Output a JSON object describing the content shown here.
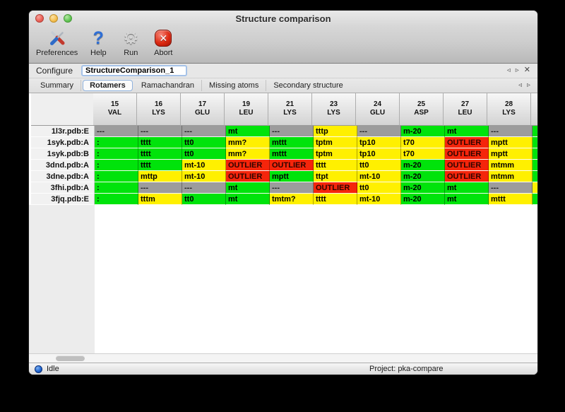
{
  "window": {
    "title": "Structure comparison"
  },
  "toolbar": {
    "items": [
      {
        "label": "Preferences"
      },
      {
        "label": "Help"
      },
      {
        "label": "Run"
      },
      {
        "label": "Abort"
      }
    ]
  },
  "icons": {
    "help_glyph": "?",
    "gear_glyph": "⚙",
    "abort_glyph": "✕",
    "prev_arrow": "◃",
    "next_arrow": "▹",
    "close_glyph": "✕"
  },
  "configure": {
    "label": "Configure",
    "value": "StructureComparison_1"
  },
  "tab_bar": {
    "tabs": [
      "Summary",
      "Rotamers",
      "Ramachandran",
      "Missing atoms",
      "Secondary structure"
    ],
    "active": "Rotamers"
  },
  "table": {
    "columns": [
      {
        "num": "15",
        "res": "VAL"
      },
      {
        "num": "16",
        "res": "LYS"
      },
      {
        "num": "17",
        "res": "GLU"
      },
      {
        "num": "19",
        "res": "LEU"
      },
      {
        "num": "21",
        "res": "LYS"
      },
      {
        "num": "23",
        "res": "LYS"
      },
      {
        "num": "24",
        "res": "GLU"
      },
      {
        "num": "25",
        "res": "ASP"
      },
      {
        "num": "27",
        "res": "LEU"
      },
      {
        "num": "28",
        "res": "LYS"
      }
    ],
    "rows": [
      {
        "label": "1l3r.pdb:E",
        "overflow_color": "green",
        "cells": [
          {
            "text": "---",
            "color": "gray"
          },
          {
            "text": "---",
            "color": "gray"
          },
          {
            "text": "---",
            "color": "gray"
          },
          {
            "text": "mt",
            "color": "green"
          },
          {
            "text": "---",
            "color": "gray"
          },
          {
            "text": "tttp",
            "color": "yellow"
          },
          {
            "text": "---",
            "color": "gray"
          },
          {
            "text": "m-20",
            "color": "green"
          },
          {
            "text": "mt",
            "color": "green"
          },
          {
            "text": "---",
            "color": "gray"
          }
        ]
      },
      {
        "label": "1syk.pdb:A",
        "overflow_color": "green",
        "cells": [
          {
            "text": ":",
            "color": "green"
          },
          {
            "text": "tttt",
            "color": "green"
          },
          {
            "text": "tt0",
            "color": "green"
          },
          {
            "text": "mm?",
            "color": "yellow"
          },
          {
            "text": "mttt",
            "color": "green"
          },
          {
            "text": "tptm",
            "color": "yellow"
          },
          {
            "text": "tp10",
            "color": "yellow"
          },
          {
            "text": "t70",
            "color": "yellow"
          },
          {
            "text": "OUTLIER",
            "color": "red"
          },
          {
            "text": "mptt",
            "color": "yellow"
          }
        ]
      },
      {
        "label": "1syk.pdb:B",
        "overflow_color": "green",
        "cells": [
          {
            "text": ":",
            "color": "green"
          },
          {
            "text": "tttt",
            "color": "green"
          },
          {
            "text": "tt0",
            "color": "green"
          },
          {
            "text": "mm?",
            "color": "yellow"
          },
          {
            "text": "mttt",
            "color": "green"
          },
          {
            "text": "tptm",
            "color": "yellow"
          },
          {
            "text": "tp10",
            "color": "yellow"
          },
          {
            "text": "t70",
            "color": "yellow"
          },
          {
            "text": "OUTLIER",
            "color": "red"
          },
          {
            "text": "mptt",
            "color": "yellow"
          }
        ]
      },
      {
        "label": "3dnd.pdb:A",
        "overflow_color": "green",
        "cells": [
          {
            "text": ":",
            "color": "green"
          },
          {
            "text": "tttt",
            "color": "green"
          },
          {
            "text": "mt-10",
            "color": "yellow"
          },
          {
            "text": "OUTLIER",
            "color": "red"
          },
          {
            "text": "OUTLIER",
            "color": "red"
          },
          {
            "text": "tttt",
            "color": "yellow"
          },
          {
            "text": "tt0",
            "color": "yellow"
          },
          {
            "text": "m-20",
            "color": "green"
          },
          {
            "text": "OUTLIER",
            "color": "red"
          },
          {
            "text": "mtmm",
            "color": "yellow"
          }
        ]
      },
      {
        "label": "3dne.pdb:A",
        "overflow_color": "green",
        "cells": [
          {
            "text": ":",
            "color": "green"
          },
          {
            "text": "mttp",
            "color": "yellow"
          },
          {
            "text": "mt-10",
            "color": "yellow"
          },
          {
            "text": "OUTLIER",
            "color": "red"
          },
          {
            "text": "mptt",
            "color": "green"
          },
          {
            "text": "ttpt",
            "color": "yellow"
          },
          {
            "text": "mt-10",
            "color": "yellow"
          },
          {
            "text": "m-20",
            "color": "green"
          },
          {
            "text": "OUTLIER",
            "color": "red"
          },
          {
            "text": "mtmm",
            "color": "yellow"
          }
        ]
      },
      {
        "label": "3fhi.pdb:A",
        "overflow_color": "yellow",
        "cells": [
          {
            "text": ":",
            "color": "green"
          },
          {
            "text": "---",
            "color": "gray"
          },
          {
            "text": "---",
            "color": "gray"
          },
          {
            "text": "mt",
            "color": "green"
          },
          {
            "text": "---",
            "color": "gray"
          },
          {
            "text": "OUTLIER",
            "color": "red"
          },
          {
            "text": "tt0",
            "color": "yellow"
          },
          {
            "text": "m-20",
            "color": "green"
          },
          {
            "text": "mt",
            "color": "green"
          },
          {
            "text": "---",
            "color": "gray"
          }
        ]
      },
      {
        "label": "3fjq.pdb:E",
        "overflow_color": "green",
        "cells": [
          {
            "text": ":",
            "color": "green"
          },
          {
            "text": "tttm",
            "color": "yellow"
          },
          {
            "text": "tt0",
            "color": "green"
          },
          {
            "text": "mt",
            "color": "green"
          },
          {
            "text": "tmtm?",
            "color": "yellow"
          },
          {
            "text": "tttt",
            "color": "yellow"
          },
          {
            "text": "mt-10",
            "color": "yellow"
          },
          {
            "text": "m-20",
            "color": "green"
          },
          {
            "text": "mt",
            "color": "green"
          },
          {
            "text": "mttt",
            "color": "yellow"
          }
        ]
      }
    ]
  },
  "status_bar": {
    "state": "Idle",
    "project": "Project: pka-compare"
  },
  "colors": {
    "green": "#00E30B",
    "yellow": "#FFF000",
    "red": "#F5250B",
    "gray": "#9C9C9C"
  }
}
